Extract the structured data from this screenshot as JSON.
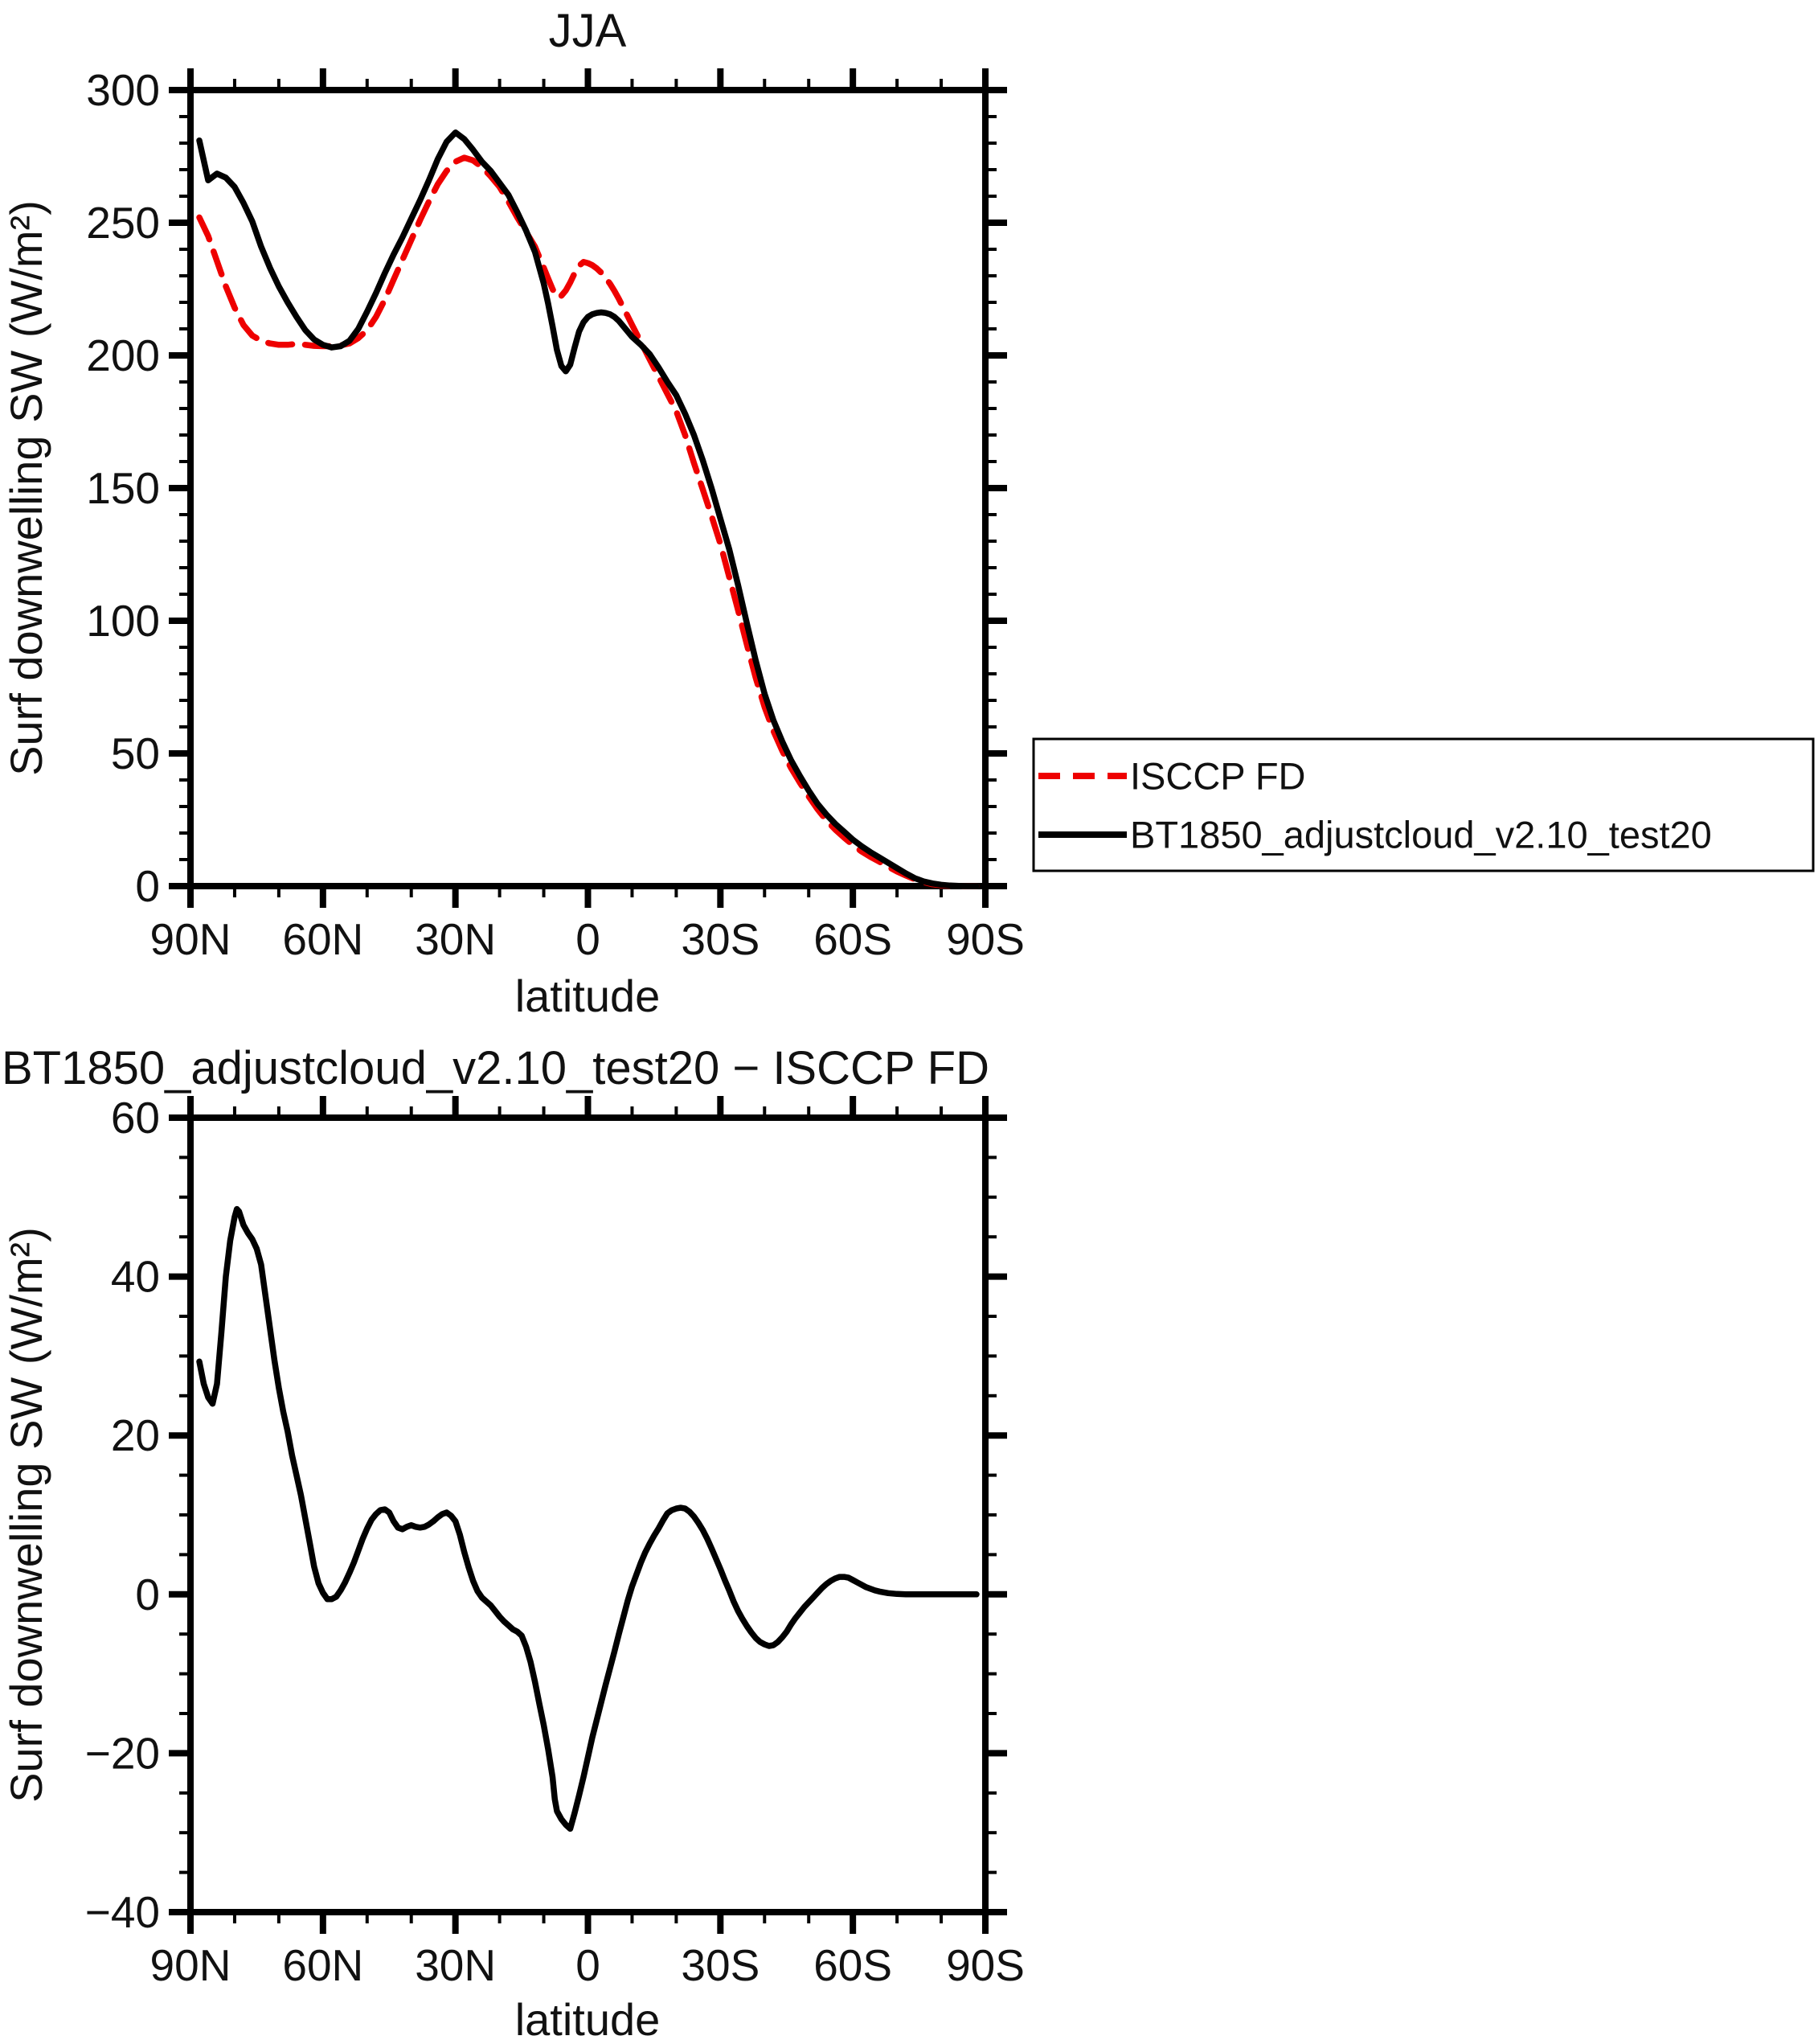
{
  "figure": {
    "background": "#ffffff",
    "line_red": "#ee0000",
    "line_black": "#000000"
  },
  "chart_data": [
    {
      "type": "line",
      "title": "JJA",
      "xlabel": "latitude",
      "ylabel": "Surf downwelling SW (W/m²)",
      "grid": false,
      "legend_position": "outside-right",
      "xlim": [
        90,
        -90
      ],
      "ylim": [
        0,
        300
      ],
      "x_major_ticks": [
        90,
        60,
        30,
        0,
        -30,
        -60,
        -90
      ],
      "x_tick_labels": [
        "90N",
        "60N",
        "30N",
        "0",
        "30S",
        "60S",
        "90S"
      ],
      "x_minor_step": 10,
      "y_major_step": 50,
      "y_minor_step": 10,
      "y_tick_labels": [
        "0",
        "50",
        "100",
        "150",
        "200",
        "250",
        "300"
      ],
      "series": [
        {
          "name": "ISCCP FD",
          "color": "#ee0000",
          "line_style": "dashed",
          "x": [
            88,
            86,
            84,
            82,
            80,
            78,
            76,
            74,
            72,
            70,
            68,
            66,
            64,
            62,
            60,
            58,
            56,
            54,
            52,
            50,
            48,
            46,
            44,
            42,
            40,
            38,
            36,
            34,
            32,
            30,
            28,
            26,
            24,
            22,
            20,
            18,
            16,
            14,
            12,
            10,
            9,
            8,
            7,
            6,
            5,
            4,
            3,
            2,
            1,
            0,
            -1,
            -2,
            -3,
            -4,
            -5,
            -6,
            -7,
            -8,
            -9,
            -10,
            -12,
            -14,
            -16,
            -18,
            -20,
            -22,
            -24,
            -26,
            -28,
            -30,
            -32,
            -34,
            -36,
            -38,
            -40,
            -42,
            -44,
            -46,
            -48,
            -50,
            -52,
            -54,
            -56,
            -58,
            -60,
            -62,
            -64,
            -66,
            -68,
            -70,
            -72,
            -74,
            -76,
            -78,
            -80,
            -82,
            -84,
            -86,
            -88
          ],
          "y": [
            252,
            245,
            235.5,
            226,
            218,
            211.5,
            207.5,
            205.5,
            204.5,
            204,
            204,
            204.3,
            204,
            203.6,
            203.5,
            203.5,
            203.8,
            204.5,
            206.5,
            209.5,
            214.5,
            221,
            228.5,
            236,
            243.5,
            251,
            258,
            264.5,
            269.5,
            273,
            274.5,
            273.5,
            271,
            267.5,
            263.5,
            258,
            252,
            246.5,
            241,
            233,
            229,
            225,
            222,
            222.5,
            224.5,
            227.5,
            231,
            233.8,
            235.2,
            234.8,
            234,
            232.8,
            231.2,
            229.3,
            227,
            224.3,
            221.3,
            218,
            214.8,
            211.5,
            205,
            198.5,
            192,
            185.5,
            179,
            170,
            159.5,
            149.5,
            139.5,
            129,
            116.5,
            104,
            91,
            78.5,
            67.5,
            58.5,
            51,
            44.5,
            39,
            33.8,
            29,
            24.8,
            21.3,
            18.3,
            15.5,
            13,
            11,
            9.2,
            7.3,
            5.5,
            4,
            2.6,
            1.5,
            0.7,
            0.3,
            0.1,
            0,
            0,
            0
          ]
        },
        {
          "name": "BT1850_adjustcloud_v2.10_test20",
          "color": "#000000",
          "line_style": "solid",
          "x": [
            88,
            86,
            84,
            82,
            80,
            78,
            76,
            74,
            72,
            70,
            68,
            66,
            64,
            62,
            60,
            58,
            56,
            54,
            52,
            50,
            48,
            46,
            44,
            42,
            40,
            38,
            36,
            34,
            32,
            30,
            28,
            26,
            24,
            22,
            20,
            18,
            16,
            14,
            12,
            10,
            9,
            8,
            7,
            6,
            5,
            4,
            3,
            2,
            1,
            0,
            -1,
            -2,
            -3,
            -4,
            -5,
            -6,
            -7,
            -8,
            -9,
            -10,
            -12,
            -14,
            -16,
            -18,
            -20,
            -22,
            -24,
            -26,
            -28,
            -30,
            -32,
            -34,
            -36,
            -38,
            -40,
            -42,
            -44,
            -46,
            -48,
            -50,
            -52,
            -54,
            -56,
            -58,
            -60,
            -62,
            -64,
            -66,
            -68,
            -70,
            -72,
            -74,
            -76,
            -78,
            -80,
            -82,
            -84,
            -86,
            -88
          ],
          "y": [
            281,
            266,
            268.5,
            267,
            263.5,
            257.5,
            250.5,
            241,
            233,
            226,
            220,
            214.5,
            209.5,
            206,
            204,
            203,
            203.5,
            205.5,
            210,
            216.5,
            223.5,
            231,
            238,
            244.5,
            251.5,
            258.5,
            266,
            274,
            280.5,
            284,
            281.5,
            277.5,
            273,
            269.5,
            265,
            260.5,
            254,
            247,
            239,
            227,
            219.5,
            211,
            202,
            196,
            194,
            196.5,
            203,
            209,
            212.5,
            214.5,
            215.5,
            216,
            216.2,
            216,
            215.5,
            214.5,
            213,
            211,
            209,
            207,
            204,
            200.5,
            195.5,
            190,
            185,
            178,
            170,
            160.5,
            150,
            138.5,
            127,
            113.5,
            99,
            85,
            72.5,
            62.5,
            54.5,
            47.5,
            41.5,
            36,
            31,
            27,
            23.5,
            20.5,
            17.5,
            15,
            12.8,
            10.8,
            8.8,
            6.8,
            4.8,
            3,
            1.8,
            1,
            0.5,
            0.2,
            0.1,
            0,
            0
          ]
        }
      ]
    },
    {
      "type": "line",
      "title": "BT1850_adjustcloud_v2.10_test20 − ISCCP FD",
      "xlabel": "latitude",
      "ylabel": "Surf downwelling SW (W/m²)",
      "grid": false,
      "legend_position": "none",
      "xlim": [
        90,
        -90
      ],
      "ylim": [
        -40,
        60
      ],
      "x_major_ticks": [
        90,
        60,
        30,
        0,
        -30,
        -60,
        -90
      ],
      "x_tick_labels": [
        "90N",
        "60N",
        "30N",
        "0",
        "30S",
        "60S",
        "90S"
      ],
      "x_minor_step": 10,
      "y_major_step": 20,
      "y_minor_step": 5,
      "y_tick_labels": [
        "−40",
        "−20",
        "0",
        "20",
        "40",
        "60"
      ],
      "series": [
        {
          "name": "BT1850_adjustcloud_v2.10_test20 minus ISCCP FD",
          "color": "#000000",
          "line_style": "solid",
          "x": [
            88,
            87,
            86,
            85,
            84,
            83,
            82,
            81,
            80,
            79.5,
            79,
            78,
            77,
            76,
            75,
            74,
            73,
            72,
            71,
            70,
            69,
            68,
            67,
            66,
            65,
            64,
            63,
            62,
            61,
            60,
            59,
            58,
            57,
            56,
            55,
            54,
            53,
            52,
            51,
            50,
            49,
            48,
            47,
            46,
            45,
            44,
            43,
            42,
            41,
            40,
            39,
            38,
            37,
            36,
            35,
            34,
            33,
            32,
            31,
            30,
            29,
            28,
            27,
            26,
            25,
            24,
            23,
            22,
            21,
            20,
            19,
            18,
            17,
            16,
            15,
            14,
            13,
            12,
            11,
            10,
            9,
            8,
            7.5,
            7,
            6,
            5,
            4,
            3,
            2,
            1,
            0,
            -1,
            -2,
            -3,
            -4,
            -5,
            -6,
            -7,
            -8,
            -9,
            -10,
            -11,
            -12,
            -13,
            -14,
            -15,
            -16,
            -17,
            -18,
            -19,
            -20,
            -21,
            -22,
            -23,
            -24,
            -25,
            -26,
            -27,
            -28,
            -29,
            -30,
            -31,
            -32,
            -33,
            -34,
            -35,
            -36,
            -37,
            -38,
            -39,
            -40,
            -41,
            -42,
            -43,
            -44,
            -45,
            -46,
            -47,
            -48,
            -49,
            -50,
            -51,
            -52,
            -53,
            -54,
            -55,
            -56,
            -57,
            -58,
            -59,
            -60,
            -61,
            -62,
            -63,
            -64,
            -65,
            -66,
            -67,
            -68,
            -70,
            -72,
            -74,
            -76,
            -78,
            -80,
            -82,
            -84,
            -86,
            -88
          ],
          "y": [
            29.3,
            26.5,
            24.8,
            24,
            26.5,
            33,
            40,
            44.5,
            47.5,
            48.5,
            48.2,
            46.5,
            45.5,
            44.7,
            43.5,
            41.5,
            37.5,
            33.5,
            29.5,
            26,
            23,
            20.5,
            17.5,
            15,
            12.5,
            9.5,
            6.5,
            3.5,
            1.4,
            0.2,
            -0.6,
            -0.6,
            -0.3,
            0.5,
            1.5,
            2.7,
            4,
            5.5,
            7,
            8.3,
            9.4,
            10.1,
            10.6,
            10.7,
            10.3,
            9.2,
            8.4,
            8.2,
            8.5,
            8.7,
            8.5,
            8.4,
            8.5,
            8.8,
            9.2,
            9.7,
            10.1,
            10.3,
            9.9,
            9.2,
            7.5,
            5.3,
            3.4,
            1.7,
            0.4,
            -0.4,
            -0.9,
            -1.4,
            -2.1,
            -2.8,
            -3.4,
            -3.9,
            -4.4,
            -4.7,
            -5.2,
            -6.6,
            -8.5,
            -11,
            -13.8,
            -16.5,
            -19.5,
            -23,
            -25.8,
            -27.3,
            -28.3,
            -29,
            -29.5,
            -27.5,
            -25.3,
            -23,
            -20.5,
            -18,
            -15.8,
            -13.6,
            -11.4,
            -9.3,
            -7.2,
            -5,
            -2.9,
            -0.8,
            1,
            2.5,
            4,
            5.3,
            6.4,
            7.4,
            8.3,
            9.3,
            10.2,
            10.6,
            10.8,
            10.9,
            10.8,
            10.4,
            9.8,
            9,
            8.1,
            7,
            5.8,
            4.5,
            3.2,
            1.8,
            0.5,
            -0.9,
            -2.1,
            -3.1,
            -4,
            -4.8,
            -5.5,
            -6,
            -6.3,
            -6.5,
            -6.4,
            -6,
            -5.4,
            -4.7,
            -3.8,
            -3,
            -2.3,
            -1.6,
            -1,
            -0.4,
            0.2,
            0.8,
            1.3,
            1.7,
            2,
            2.2,
            2.2,
            2.1,
            1.8,
            1.5,
            1.2,
            0.9,
            0.7,
            0.5,
            0.35,
            0.25,
            0.15,
            0.05,
            0,
            0,
            0,
            0,
            0,
            0,
            0,
            0,
            0
          ]
        }
      ]
    }
  ]
}
